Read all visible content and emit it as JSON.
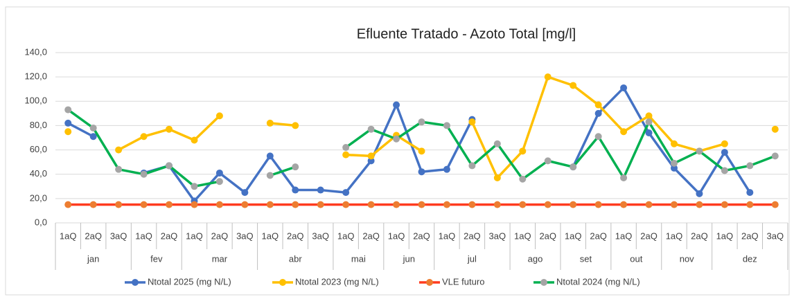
{
  "chart_data": {
    "type": "line",
    "title": "Efluente Tratado - Azoto Total [mg/l]",
    "groups": [
      {
        "label": "jan",
        "categories": [
          "1aQ",
          "2aQ",
          "3aQ"
        ]
      },
      {
        "label": "fev",
        "categories": [
          "1aQ",
          "2aQ"
        ]
      },
      {
        "label": "mar",
        "categories": [
          "1aQ",
          "2aQ",
          "3aQ"
        ]
      },
      {
        "label": "abr",
        "categories": [
          "1aQ",
          "2aQ",
          "3aQ"
        ]
      },
      {
        "label": "mai",
        "categories": [
          "1aQ",
          "2aQ"
        ]
      },
      {
        "label": "jun",
        "categories": [
          "1aQ",
          "2aQ"
        ]
      },
      {
        "label": "jul",
        "categories": [
          "1aQ",
          "2aQ",
          "3aQ"
        ]
      },
      {
        "label": "ago",
        "categories": [
          "1aQ",
          "2aQ"
        ]
      },
      {
        "label": "set",
        "categories": [
          "1aQ",
          "2aQ"
        ]
      },
      {
        "label": "out",
        "categories": [
          "1aQ",
          "2aQ"
        ]
      },
      {
        "label": "nov",
        "categories": [
          "1aQ",
          "2aQ"
        ]
      },
      {
        "label": "dez",
        "categories": [
          "1aQ",
          "2aQ",
          "3aQ"
        ]
      }
    ],
    "series": [
      {
        "name": "Ntotal 2025 (mg N/L)",
        "color": "#4472c4",
        "marker_color": "#4472c4",
        "values": [
          82,
          71,
          null,
          41,
          47,
          18,
          41,
          25,
          55,
          27,
          27,
          25,
          51,
          97,
          42,
          44,
          85,
          null,
          null,
          null,
          46,
          90,
          111,
          74,
          45,
          24,
          58,
          25,
          null
        ]
      },
      {
        "name": "Ntotal 2023 (mg N/L)",
        "color": "#ffc000",
        "marker_color": "#ffc000",
        "values": [
          75,
          null,
          60,
          71,
          77,
          68,
          88,
          null,
          82,
          80,
          null,
          56,
          55,
          72,
          59,
          null,
          83,
          37,
          59,
          120,
          113,
          97,
          75,
          88,
          65,
          59,
          65,
          null,
          77
        ]
      },
      {
        "name": "VLE futuro",
        "color": "#ff3b1f",
        "marker_color": "#ed7d31",
        "values": [
          15,
          15,
          15,
          15,
          15,
          15,
          15,
          15,
          15,
          15,
          15,
          15,
          15,
          15,
          15,
          15,
          15,
          15,
          15,
          15,
          15,
          15,
          15,
          15,
          15,
          15,
          15,
          15,
          15
        ]
      },
      {
        "name": "Ntotal 2024 (mg N/L)",
        "color": "#00b050",
        "marker_color": "#a5a5a5",
        "values": [
          93,
          78,
          44,
          40,
          47,
          30,
          34,
          null,
          39,
          46,
          null,
          62,
          77,
          69,
          83,
          80,
          47,
          65,
          36,
          51,
          46,
          71,
          37,
          83,
          49,
          59,
          43,
          47,
          55
        ]
      }
    ],
    "ylim": [
      0,
      140
    ],
    "yticks": [
      {
        "value": 0,
        "label": "0,0"
      },
      {
        "value": 20,
        "label": "20,0"
      },
      {
        "value": 40,
        "label": "40,0"
      },
      {
        "value": 60,
        "label": "60,0"
      },
      {
        "value": 80,
        "label": "80,0"
      },
      {
        "value": 100,
        "label": "100,0"
      },
      {
        "value": 120,
        "label": "120,0"
      },
      {
        "value": 140,
        "label": "140,0"
      }
    ],
    "grid": true,
    "legend": "bottom"
  }
}
